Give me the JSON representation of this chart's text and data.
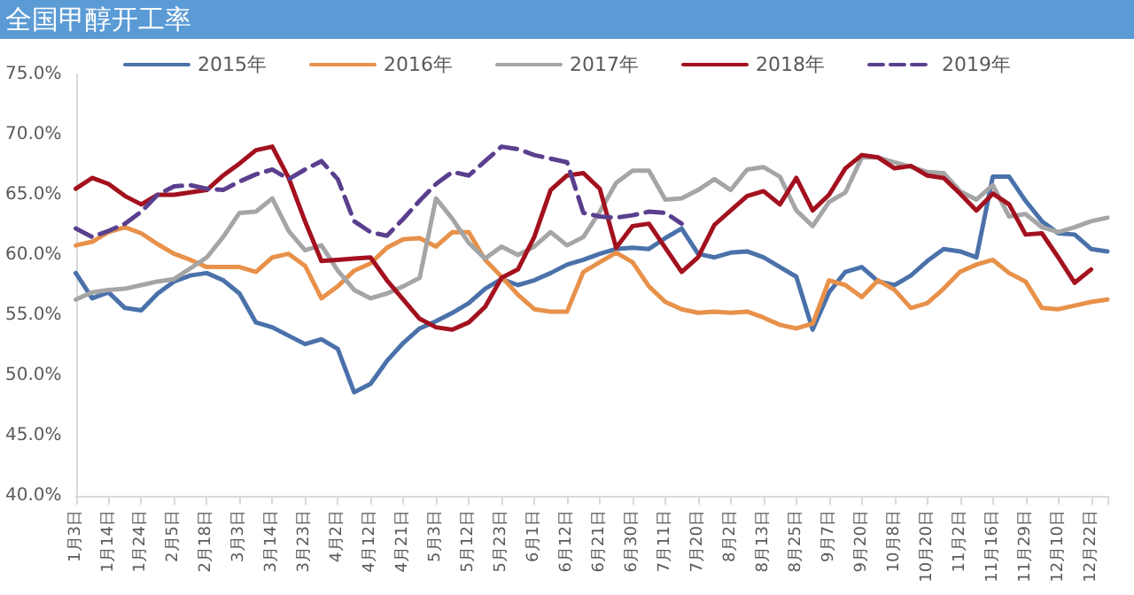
{
  "chart_data": {
    "type": "line",
    "title": "全国甲醇开工率",
    "categories": [
      "1月3日",
      null,
      "1月14日",
      null,
      "1月24日",
      null,
      "2月5日",
      null,
      "2月18日",
      null,
      "3月3日",
      null,
      "3月14日",
      null,
      "3月23日",
      null,
      "4月2日",
      null,
      "4月12日",
      null,
      "4月21日",
      null,
      "5月3日",
      null,
      "5月12日",
      null,
      "5月23日",
      null,
      "6月1日",
      null,
      "6月12日",
      null,
      "6月21日",
      null,
      "6月30日",
      null,
      "7月11日",
      null,
      "7月20日",
      null,
      "8月2日",
      null,
      "8月13日",
      null,
      "8月25日",
      null,
      "9月7日",
      null,
      "9月20日",
      null,
      "10月8日",
      null,
      "10月20日",
      null,
      "11月2日",
      null,
      "11月16日",
      null,
      "11月29日",
      null,
      "12月10日",
      null,
      "12月22日",
      null
    ],
    "series": [
      {
        "name": "2015年",
        "color": "#4a71aa",
        "values": [
          58.5,
          56.4,
          56.9,
          55.6,
          55.4,
          56.8,
          57.8,
          58.3,
          58.5,
          57.9,
          56.8,
          54.4,
          54.0,
          53.3,
          52.6,
          53.0,
          52.2,
          48.6,
          49.3,
          51.2,
          52.7,
          53.9,
          54.5,
          55.2,
          56.0,
          57.2,
          58.0,
          57.5,
          57.9,
          58.5,
          59.2,
          59.6,
          60.1,
          60.5,
          60.6,
          60.5,
          61.4,
          62.2,
          60.1,
          59.8,
          60.2,
          60.3,
          59.8,
          59.0,
          58.2,
          53.8,
          56.9,
          58.6,
          59.0,
          57.8,
          57.5,
          58.3,
          59.5,
          60.5,
          60.3,
          59.8,
          66.5,
          66.5,
          64.5,
          62.8,
          61.8,
          61.7,
          60.5,
          60.3
        ]
      },
      {
        "name": "2016年",
        "color": "#e8914a",
        "values": [
          60.8,
          61.1,
          61.9,
          62.3,
          61.8,
          60.9,
          60.1,
          59.6,
          59.0,
          59.0,
          59.0,
          58.6,
          59.8,
          60.1,
          59.1,
          56.4,
          57.4,
          58.7,
          59.3,
          60.6,
          61.3,
          61.4,
          60.7,
          61.9,
          61.9,
          59.6,
          58.2,
          56.7,
          55.5,
          55.3,
          55.3,
          58.6,
          59.4,
          60.2,
          59.4,
          57.4,
          56.1,
          55.5,
          55.2,
          55.3,
          55.2,
          55.3,
          54.8,
          54.2,
          53.9,
          54.3,
          57.9,
          57.5,
          56.5,
          57.9,
          57.1,
          55.6,
          56.0,
          57.2,
          58.6,
          59.2,
          59.6,
          58.5,
          57.8,
          55.6,
          55.5,
          55.8,
          56.1,
          56.3
        ]
      },
      {
        "name": "2017年",
        "color": "#a5a5a5",
        "values": [
          56.3,
          56.9,
          57.1,
          57.2,
          57.5,
          57.8,
          58.0,
          58.9,
          59.8,
          61.5,
          63.5,
          63.6,
          64.7,
          62.0,
          60.4,
          60.8,
          58.7,
          57.1,
          56.4,
          56.8,
          57.4,
          58.1,
          64.7,
          63.0,
          61.0,
          59.7,
          60.7,
          60.0,
          60.7,
          61.9,
          60.8,
          61.5,
          63.6,
          66.0,
          67.0,
          67.0,
          64.6,
          64.7,
          65.4,
          66.3,
          65.4,
          67.1,
          67.3,
          66.5,
          63.7,
          62.4,
          64.4,
          65.2,
          68.1,
          68.1,
          67.7,
          67.3,
          66.9,
          66.8,
          65.3,
          64.6,
          65.8,
          63.2,
          63.4,
          62.3,
          61.9,
          62.3,
          62.8,
          63.1
        ]
      },
      {
        "name": "2018年",
        "color": "#a3111f",
        "values": [
          65.5,
          66.4,
          65.9,
          64.9,
          64.2,
          65.0,
          65.0,
          65.2,
          65.4,
          66.6,
          67.6,
          68.7,
          69.0,
          66.4,
          62.8,
          59.5,
          59.6,
          59.7,
          59.8,
          57.9,
          56.3,
          54.7,
          54.0,
          53.8,
          54.4,
          55.7,
          58.1,
          58.8,
          61.5,
          65.4,
          66.6,
          66.8,
          65.5,
          60.6,
          62.4,
          62.6,
          60.6,
          58.6,
          59.8,
          62.5,
          63.7,
          64.9,
          65.3,
          64.2,
          66.4,
          63.7,
          65.0,
          67.2,
          68.3,
          68.1,
          67.2,
          67.4,
          66.6,
          66.4,
          65.1,
          63.7,
          65.1,
          64.2,
          61.7,
          61.8,
          59.8,
          57.7,
          58.8,
          null
        ]
      },
      {
        "name": "2019年",
        "color": "#5a3f8e",
        "line_style": "dashed",
        "values": [
          62.2,
          61.5,
          62.0,
          62.6,
          63.6,
          65.0,
          65.7,
          65.8,
          65.5,
          65.4,
          66.1,
          66.7,
          67.1,
          66.3,
          67.1,
          67.8,
          66.3,
          62.8,
          61.9,
          61.6,
          63.0,
          64.5,
          65.9,
          66.9,
          66.6,
          67.8,
          69.0,
          68.8,
          68.3,
          68.0,
          67.7,
          63.5,
          63.2,
          63.1,
          63.3,
          63.6,
          63.5,
          62.6,
          null,
          null,
          null,
          null,
          null,
          null,
          null,
          null,
          null,
          null,
          null,
          null,
          null,
          null,
          null,
          null,
          null,
          null,
          null,
          null,
          null,
          null,
          null,
          null,
          null,
          null
        ]
      }
    ],
    "ylim": [
      40,
      75
    ],
    "yticks": [
      {
        "value": 40,
        "label": "40.0%"
      },
      {
        "value": 45,
        "label": "45.0%"
      },
      {
        "value": 50,
        "label": "50.0%"
      },
      {
        "value": 55,
        "label": "55.0%"
      },
      {
        "value": 60,
        "label": "60.0%"
      },
      {
        "value": 65,
        "label": "65.0%"
      },
      {
        "value": 70,
        "label": "70.0%"
      },
      {
        "value": 75,
        "label": "75.0%"
      }
    ],
    "grid": false,
    "legend": "top",
    "marker": "none",
    "line_style": "solid"
  }
}
